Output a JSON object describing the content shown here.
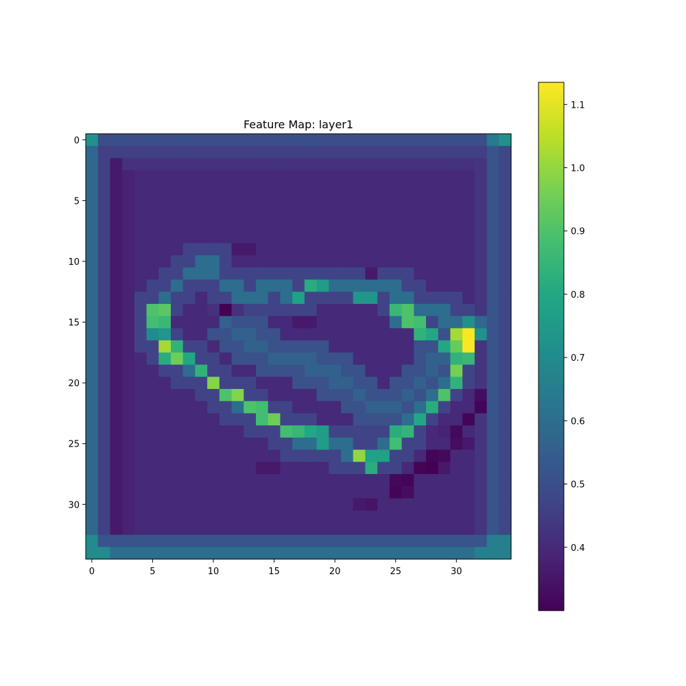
{
  "chart_data": {
    "type": "heatmap",
    "title": "Feature Map: layer1",
    "xlabel": "",
    "ylabel": "",
    "rows": 35,
    "cols": 35,
    "xlim": [
      -0.5,
      34.5
    ],
    "ylim": [
      34.5,
      -0.5
    ],
    "x_ticks": [
      0,
      5,
      10,
      15,
      20,
      25,
      30
    ],
    "y_ticks": [
      0,
      5,
      10,
      15,
      20,
      25,
      30
    ],
    "colormap": "viridis",
    "colorbar": {
      "vmin": 0.3,
      "vmax": 1.135,
      "ticks": [
        0.4,
        0.5,
        0.6,
        0.7,
        0.8,
        0.9,
        1.0,
        1.1
      ],
      "tick_labels": [
        "0.4",
        "0.5",
        "0.6",
        "0.7",
        "0.8",
        "0.9",
        "1.0",
        "1.1"
      ]
    },
    "background": 0.4,
    "border_segments": [
      {
        "cells": [
          [
            0,
            0
          ]
        ],
        "value": 0.72
      },
      {
        "cells": [
          [
            0,
            33
          ]
        ],
        "value": 0.64
      },
      {
        "cells": [
          [
            0,
            34
          ]
        ],
        "value": 0.72
      },
      {
        "row": 0,
        "c0": 1,
        "c1": 32,
        "value": 0.5
      },
      {
        "row": 1,
        "c0": 1,
        "c1": 33,
        "value": 0.46
      },
      {
        "row": 2,
        "c0": 1,
        "c1": 33,
        "value": 0.42
      },
      {
        "row": 33,
        "c0": 0,
        "c1": 34,
        "value": 0.52
      },
      {
        "row": 34,
        "c0": 0,
        "c1": 34,
        "value": 0.6
      },
      {
        "cells": [
          [
            34,
            0
          ],
          [
            34,
            1
          ],
          [
            33,
            0
          ]
        ],
        "value": 0.7
      },
      {
        "cells": [
          [
            34,
            32
          ],
          [
            34,
            33
          ],
          [
            34,
            34
          ],
          [
            33,
            33
          ],
          [
            33,
            34
          ]
        ],
        "value": 0.66
      },
      {
        "col": 0,
        "r0": 1,
        "r1": 32,
        "value": 0.58
      },
      {
        "col": 1,
        "r0": 1,
        "r1": 32,
        "value": 0.46
      },
      {
        "col": 2,
        "r0": 2,
        "r1": 32,
        "value": 0.36
      },
      {
        "col": 32,
        "r0": 2,
        "r1": 32,
        "value": 0.43
      },
      {
        "col": 33,
        "r0": 1,
        "r1": 32,
        "value": 0.52
      },
      {
        "col": 34,
        "r0": 1,
        "r1": 32,
        "value": 0.48
      }
    ],
    "stroke_base": 0.6,
    "stroke_halo": 0.47,
    "stroke_path": [
      [
        10,
        10
      ],
      [
        11,
        8
      ],
      [
        12,
        7
      ],
      [
        13,
        6
      ],
      [
        14,
        5
      ],
      [
        15,
        5
      ],
      [
        16,
        5
      ],
      [
        17,
        6
      ],
      [
        18,
        7
      ],
      [
        19,
        9
      ],
      [
        20,
        10
      ],
      [
        21,
        11
      ],
      [
        22,
        13
      ],
      [
        23,
        14
      ],
      [
        23,
        15
      ],
      [
        24,
        16
      ],
      [
        25,
        18
      ],
      [
        25,
        20
      ],
      [
        26,
        22
      ],
      [
        26,
        23
      ],
      [
        25,
        25
      ],
      [
        24,
        26
      ],
      [
        23,
        26
      ],
      [
        22,
        27
      ],
      [
        21,
        28
      ],
      [
        20,
        29
      ],
      [
        19,
        30
      ],
      [
        18,
        30
      ],
      [
        17,
        31
      ],
      [
        16,
        31
      ],
      [
        15,
        30
      ],
      [
        14,
        28
      ],
      [
        14,
        26
      ],
      [
        13,
        26
      ],
      [
        12,
        24
      ],
      [
        12,
        22
      ],
      [
        12,
        20
      ],
      [
        12,
        18
      ],
      [
        13,
        17
      ],
      [
        12,
        15
      ],
      [
        13,
        13
      ],
      [
        12,
        11
      ],
      [
        11,
        10
      ]
    ],
    "inner_path": [
      [
        15,
        11
      ],
      [
        16,
        12
      ],
      [
        17,
        14
      ],
      [
        18,
        15
      ],
      [
        18,
        17
      ],
      [
        19,
        19
      ],
      [
        20,
        21
      ],
      [
        21,
        22
      ],
      [
        22,
        23
      ],
      [
        22,
        25
      ],
      [
        21,
        26
      ],
      [
        20,
        27
      ],
      [
        19,
        28
      ],
      [
        17,
        29
      ]
    ],
    "points": [
      {
        "r": 14,
        "c": 5,
        "v": 0.9
      },
      {
        "r": 14,
        "c": 6,
        "v": 0.92
      },
      {
        "r": 15,
        "c": 5,
        "v": 0.88
      },
      {
        "r": 15,
        "c": 6,
        "v": 0.86
      },
      {
        "r": 16,
        "c": 5,
        "v": 0.7
      },
      {
        "r": 16,
        "c": 6,
        "v": 0.74
      },
      {
        "r": 17,
        "c": 6,
        "v": 1.02
      },
      {
        "r": 17,
        "c": 7,
        "v": 0.84
      },
      {
        "r": 18,
        "c": 6,
        "v": 0.82
      },
      {
        "r": 18,
        "c": 7,
        "v": 0.95
      },
      {
        "r": 18,
        "c": 8,
        "v": 0.8
      },
      {
        "r": 19,
        "c": 9,
        "v": 0.84
      },
      {
        "r": 20,
        "c": 10,
        "v": 0.98
      },
      {
        "r": 21,
        "c": 11,
        "v": 0.9
      },
      {
        "r": 21,
        "c": 12,
        "v": 0.98
      },
      {
        "r": 22,
        "c": 13,
        "v": 0.9
      },
      {
        "r": 22,
        "c": 14,
        "v": 0.88
      },
      {
        "r": 23,
        "c": 14,
        "v": 0.88
      },
      {
        "r": 23,
        "c": 15,
        "v": 0.95
      },
      {
        "r": 24,
        "c": 16,
        "v": 0.88
      },
      {
        "r": 24,
        "c": 17,
        "v": 0.86
      },
      {
        "r": 24,
        "c": 18,
        "v": 0.8
      },
      {
        "r": 24,
        "c": 19,
        "v": 0.76
      },
      {
        "r": 25,
        "c": 19,
        "v": 0.76
      },
      {
        "r": 25,
        "c": 25,
        "v": 0.88
      },
      {
        "r": 24,
        "c": 25,
        "v": 0.82
      },
      {
        "r": 24,
        "c": 26,
        "v": 0.85
      },
      {
        "r": 23,
        "c": 27,
        "v": 0.8
      },
      {
        "r": 22,
        "c": 28,
        "v": 0.82
      },
      {
        "r": 21,
        "c": 29,
        "v": 0.9
      },
      {
        "r": 20,
        "c": 30,
        "v": 0.84
      },
      {
        "r": 19,
        "c": 30,
        "v": 0.96
      },
      {
        "r": 18,
        "c": 30,
        "v": 0.84
      },
      {
        "r": 18,
        "c": 31,
        "v": 0.86
      },
      {
        "r": 17,
        "c": 30,
        "v": 0.94
      },
      {
        "r": 16,
        "c": 30,
        "v": 1.02
      },
      {
        "r": 16,
        "c": 31,
        "v": 1.13
      },
      {
        "r": 17,
        "c": 31,
        "v": 1.13
      },
      {
        "r": 16,
        "c": 32,
        "v": 0.72
      },
      {
        "r": 15,
        "c": 31,
        "v": 0.72
      },
      {
        "r": 15,
        "c": 32,
        "v": 0.58
      },
      {
        "r": 15,
        "c": 25,
        "v": 0.6
      },
      {
        "r": 15,
        "c": 26,
        "v": 0.9
      },
      {
        "r": 15,
        "c": 27,
        "v": 0.88
      },
      {
        "r": 14,
        "c": 25,
        "v": 0.86
      },
      {
        "r": 14,
        "c": 26,
        "v": 0.9
      },
      {
        "r": 16,
        "c": 27,
        "v": 0.84
      },
      {
        "r": 16,
        "c": 28,
        "v": 0.8
      },
      {
        "r": 17,
        "c": 29,
        "v": 0.8
      },
      {
        "r": 26,
        "c": 22,
        "v": 1.0
      },
      {
        "r": 27,
        "c": 23,
        "v": 0.82
      },
      {
        "r": 26,
        "c": 23,
        "v": 0.78
      },
      {
        "r": 26,
        "c": 24,
        "v": 0.78
      },
      {
        "r": 12,
        "c": 18,
        "v": 0.82
      },
      {
        "r": 12,
        "c": 19,
        "v": 0.76
      },
      {
        "r": 13,
        "c": 17,
        "v": 0.78
      },
      {
        "r": 13,
        "c": 22,
        "v": 0.74
      },
      {
        "r": 13,
        "c": 23,
        "v": 0.74
      },
      {
        "r": 14,
        "c": 11,
        "v": 0.3
      },
      {
        "r": 14,
        "c": 10,
        "v": 0.42
      },
      {
        "r": 14,
        "c": 12,
        "v": 0.42
      },
      {
        "r": 15,
        "c": 10,
        "v": 0.4
      },
      {
        "r": 15,
        "c": 17,
        "v": 0.36
      },
      {
        "r": 15,
        "c": 18,
        "v": 0.36
      },
      {
        "r": 15,
        "c": 19,
        "v": 0.4
      },
      {
        "r": 9,
        "c": 12,
        "v": 0.36
      },
      {
        "r": 9,
        "c": 13,
        "v": 0.36
      },
      {
        "r": 26,
        "c": 28,
        "v": 0.31
      },
      {
        "r": 27,
        "c": 27,
        "v": 0.31
      },
      {
        "r": 27,
        "c": 28,
        "v": 0.3
      },
      {
        "r": 28,
        "c": 25,
        "v": 0.32
      },
      {
        "r": 28,
        "c": 26,
        "v": 0.31
      },
      {
        "r": 27,
        "c": 29,
        "v": 0.36
      },
      {
        "r": 26,
        "c": 29,
        "v": 0.32
      },
      {
        "r": 25,
        "c": 30,
        "v": 0.33
      },
      {
        "r": 24,
        "c": 30,
        "v": 0.32
      },
      {
        "r": 23,
        "c": 31,
        "v": 0.31
      },
      {
        "r": 22,
        "c": 32,
        "v": 0.31
      },
      {
        "r": 21,
        "c": 32,
        "v": 0.33
      },
      {
        "r": 29,
        "c": 25,
        "v": 0.31
      },
      {
        "r": 29,
        "c": 26,
        "v": 0.33
      },
      {
        "r": 30,
        "c": 22,
        "v": 0.36
      },
      {
        "r": 30,
        "c": 23,
        "v": 0.35
      },
      {
        "r": 25,
        "c": 31,
        "v": 0.36
      },
      {
        "r": 24,
        "c": 29,
        "v": 0.38
      },
      {
        "r": 27,
        "c": 14,
        "v": 0.36
      },
      {
        "r": 27,
        "c": 15,
        "v": 0.36
      },
      {
        "r": 11,
        "c": 23,
        "v": 0.36
      }
    ]
  }
}
